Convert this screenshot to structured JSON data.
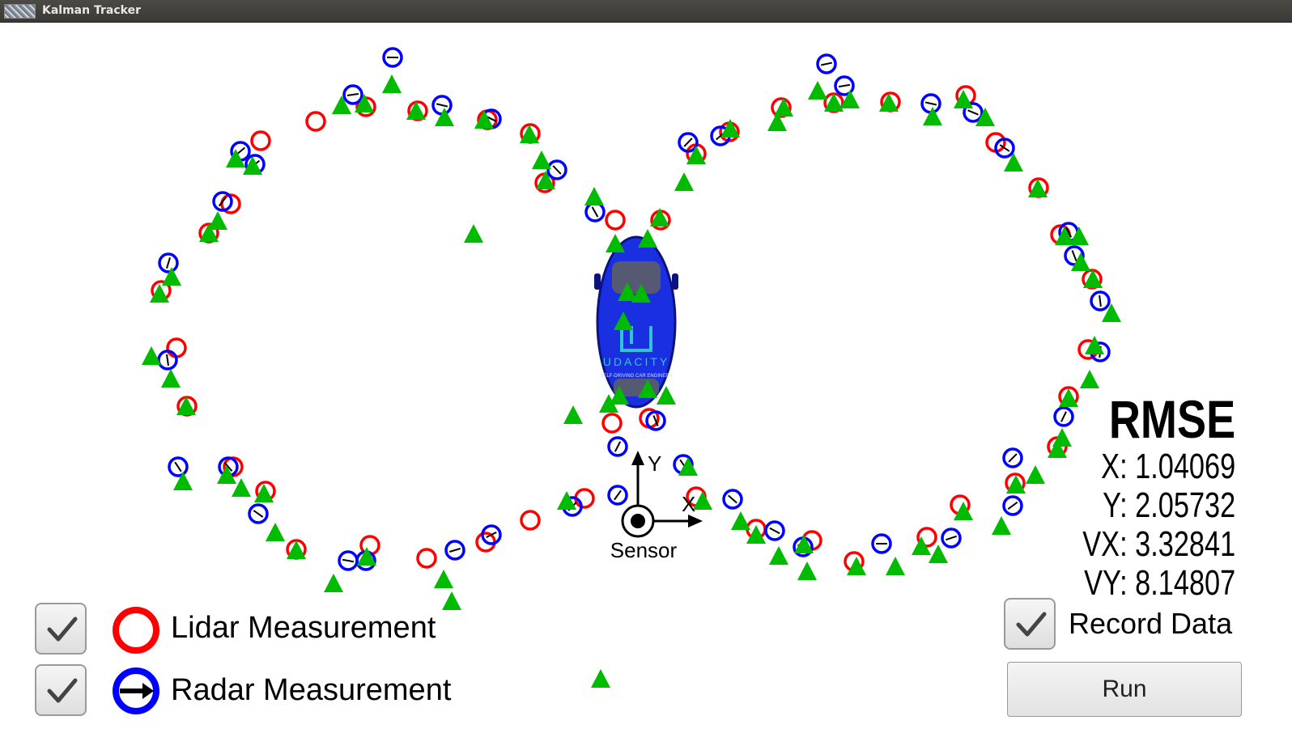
{
  "window": {
    "title": "Kalman Tracker"
  },
  "axes": {
    "x_label": "X",
    "y_label": "Y",
    "origin_label": "Sensor"
  },
  "rmse": {
    "heading": "RMSE",
    "x": "X: 1.04069",
    "y": "Y: 2.05732",
    "vx": "VX: 3.32841",
    "vy": "VY: 8.14807"
  },
  "legend": {
    "lidar_label": "Lidar Measurement",
    "radar_label": "Radar Measurement",
    "lidar_checked": true,
    "radar_checked": true
  },
  "controls": {
    "record_label": "Record Data",
    "record_checked": true,
    "run_label": "Run"
  },
  "car": {
    "logo_text": "UDACITY",
    "logo_subtext": "SELF-DRIVING CAR ENGINEER"
  },
  "colors": {
    "lidar": "#ff0000",
    "radar": "#0000ff",
    "estimate": "#00bb00",
    "car_body": "#1a2fe0",
    "logo": "#2ec4d6"
  }
}
